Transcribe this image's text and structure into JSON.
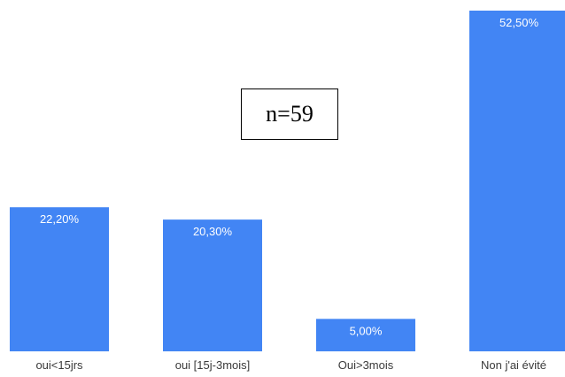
{
  "chart_data": {
    "type": "bar",
    "categories": [
      "oui<15jrs",
      "oui [15j-3mois]",
      "Oui>3mois",
      "Non j'ai évité"
    ],
    "values": [
      22.2,
      20.3,
      5.0,
      52.5
    ],
    "value_labels": [
      "22,20%",
      "20,30%",
      "5,00%",
      "52,50%"
    ],
    "ylim": [
      0,
      52.5
    ],
    "grid": false,
    "bar_color": "#4285f4",
    "annotation": "n=59"
  }
}
